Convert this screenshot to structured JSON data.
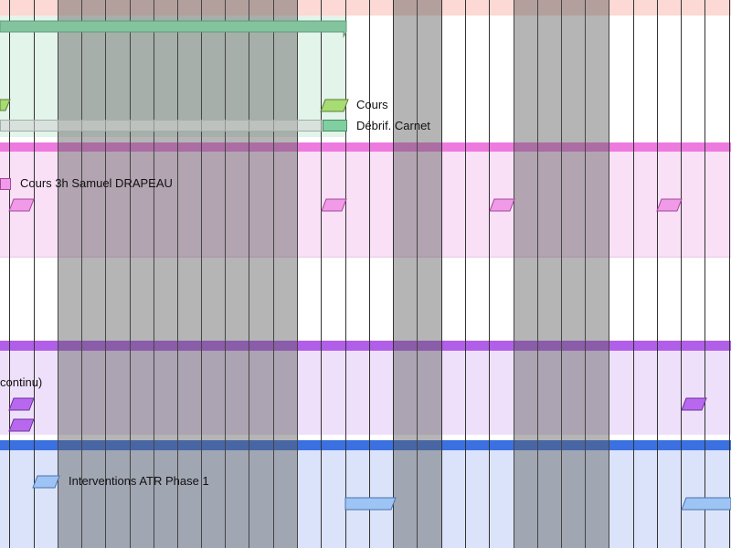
{
  "colors": {
    "header_bg": "#fcd9d4",
    "header_shade": "#d9a9a5",
    "grid_line": "#333333",
    "weekend_shade": "#5a5a5a",
    "group_green_bar": "#83c49e",
    "group_green_bg": "#e3f4ea",
    "group_pink_sep": "#ee7ae0",
    "group_pink_bg": "#f9e0f6",
    "group_purple_sep": "#b15ee9",
    "group_purple_bg": "#eee0fa",
    "group_blue_sep": "#3a70e0",
    "group_blue_bg": "#dbe3fb",
    "task_lime": "#a6dc71",
    "task_green": "#7fcfa0",
    "task_pink": "#f09ae8",
    "task_purple": "#b868ee",
    "task_blue": "#9dc4f5"
  },
  "tasks": {
    "cours_label": "Cours",
    "debrief_label": "Débrif. Carnet",
    "cours3h_label": "Cours 3h Samuel DRAPEAU",
    "continu_label": "continu)",
    "atr_label": "Interventions ATR Phase 1"
  }
}
